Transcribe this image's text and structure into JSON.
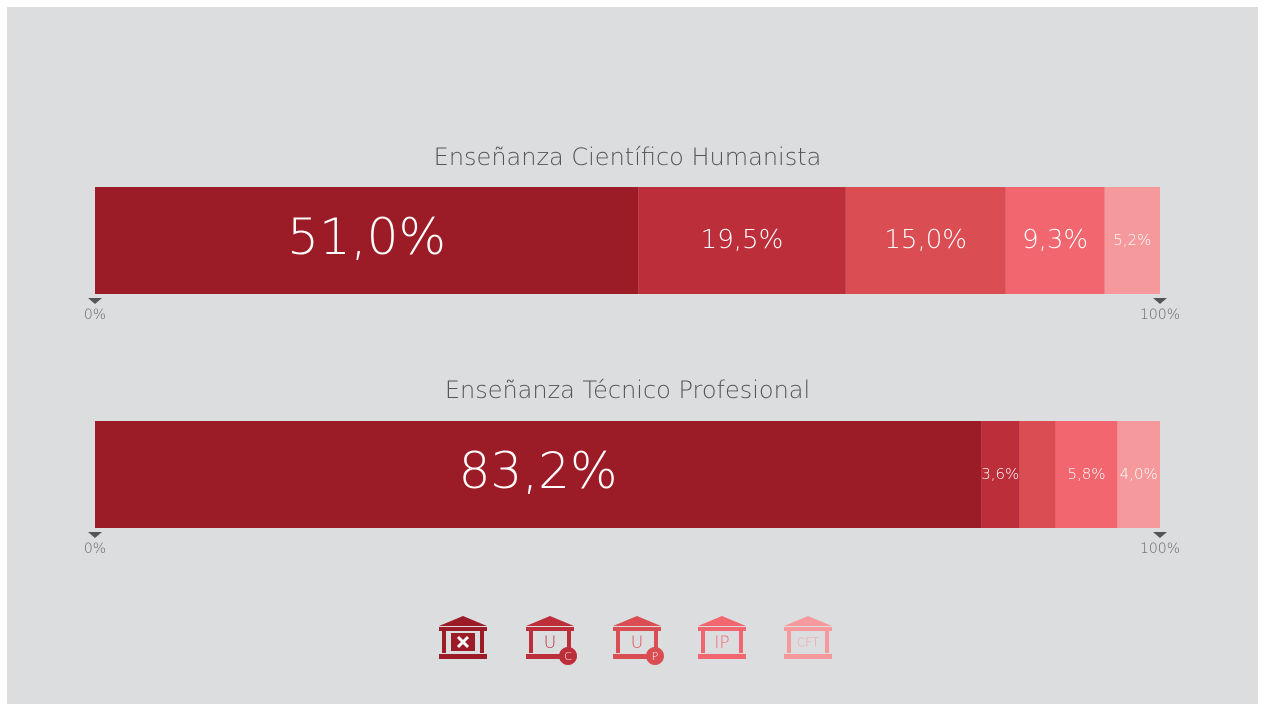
{
  "chart_data": {
    "type": "bar",
    "orientation": "horizontal",
    "stacked": true,
    "categories": [
      "Enseñanza Científico Humanista",
      "Enseñanza Técnico Profesional"
    ],
    "xlim": [
      0,
      100
    ],
    "xticks": [
      {
        "value": 0,
        "label": "0%"
      },
      {
        "value": 100,
        "label": "100%"
      }
    ],
    "series": [
      {
        "color": "#9b1b26",
        "values": [
          51.0,
          83.2
        ],
        "value_labels": [
          "51,0%",
          "83,2%"
        ]
      },
      {
        "color": "#bd2e3b",
        "values": [
          19.5,
          3.6
        ],
        "value_labels": [
          "19,5%",
          "3,6%"
        ],
        "icon": "U",
        "badge": "C"
      },
      {
        "color": "#da4d52",
        "values": [
          15.0,
          3.4
        ],
        "value_labels": [
          "15,0%",
          null
        ],
        "icon": "U",
        "badge": "P"
      },
      {
        "color": "#f1666f",
        "values": [
          9.3,
          5.8
        ],
        "value_labels": [
          "9,3%",
          "5,8%"
        ],
        "icon": "IP"
      },
      {
        "color": "#f6999c",
        "values": [
          5.2,
          4.0
        ],
        "value_labels": [
          "5,2%",
          "4,0%"
        ],
        "icon": "CFT"
      }
    ]
  }
}
